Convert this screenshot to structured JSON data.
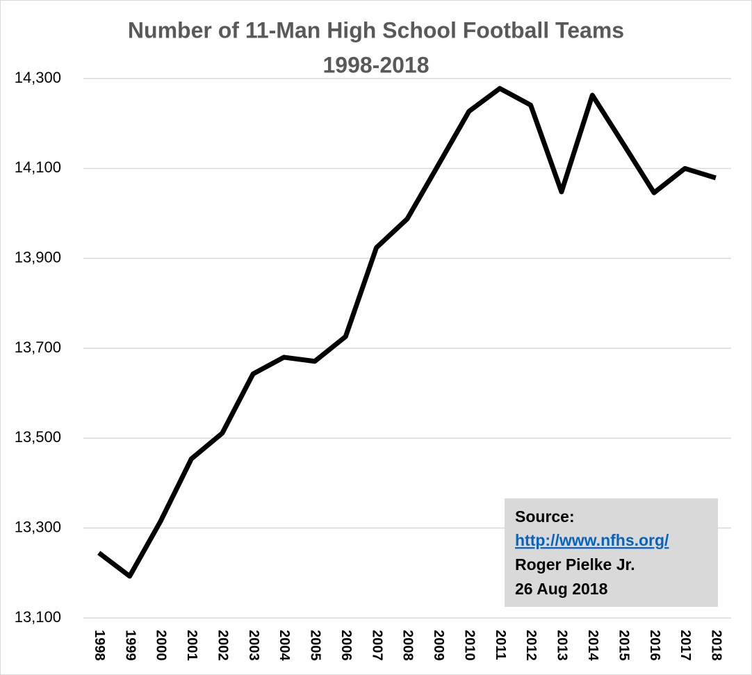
{
  "chart_data": {
    "type": "line",
    "title": "Number of 11-Man High School Football Teams",
    "subtitle": "1998-2018",
    "categories": [
      "1998",
      "1999",
      "2000",
      "2001",
      "2002",
      "2003",
      "2004",
      "2005",
      "2006",
      "2007",
      "2008",
      "2009",
      "2010",
      "2011",
      "2012",
      "2013",
      "2014",
      "2015",
      "2016",
      "2017",
      "2018"
    ],
    "values": [
      13245,
      13193,
      13315,
      13454,
      13511,
      13643,
      13680,
      13671,
      13726,
      13924,
      13988,
      14107,
      14227,
      14278,
      14241,
      14048,
      14263,
      14155,
      14046,
      14100,
      14079
    ],
    "color": "#000000",
    "ylim": [
      13100,
      14300
    ],
    "yticks": [
      {
        "value": 13100,
        "label": "13,100"
      },
      {
        "value": 13300,
        "label": "13,300"
      },
      {
        "value": 13500,
        "label": "13,500"
      },
      {
        "value": 13700,
        "label": "13,700"
      },
      {
        "value": 13900,
        "label": "13,900"
      },
      {
        "value": 14100,
        "label": "14,100"
      },
      {
        "value": 14300,
        "label": "14,300"
      }
    ],
    "grid": true,
    "annotations": [
      "Source:",
      "http://www.nfhs.org/",
      "Roger Pielke Jr.",
      "26 Aug 2018"
    ]
  }
}
